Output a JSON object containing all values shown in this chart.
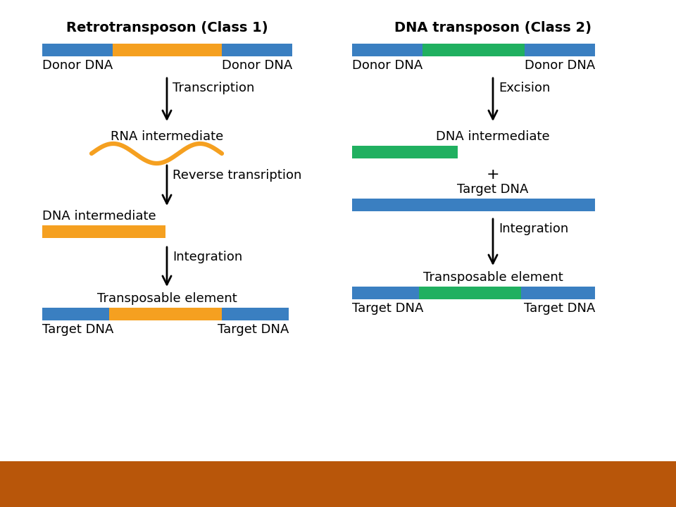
{
  "bg_color": "#ffffff",
  "bottom_bar_color": "#b8560a",
  "blue_color": "#3a7fc1",
  "orange_color": "#f5a020",
  "green_color": "#20b060",
  "left_title": "Retrotransposon (Class 1)",
  "right_title": "DNA transposon (Class 2)",
  "left_arrow1_label": "Transcription",
  "left_arrow2_label": "Reverse transription",
  "left_arrow3_label": "Integration",
  "right_arrow1_label": "Excision",
  "right_arrow2_label": "Integration",
  "left_rna_label": "RNA intermediate",
  "left_dna_int_label": "DNA intermediate",
  "left_trans_label": "Transposable element",
  "right_dna_int_label": "DNA intermediate",
  "right_target_dna_label": "Target DNA",
  "right_trans_label": "Transposable element",
  "donor_dna": "Donor DNA",
  "target_dna": "Target DNA",
  "plus_sign": "+"
}
